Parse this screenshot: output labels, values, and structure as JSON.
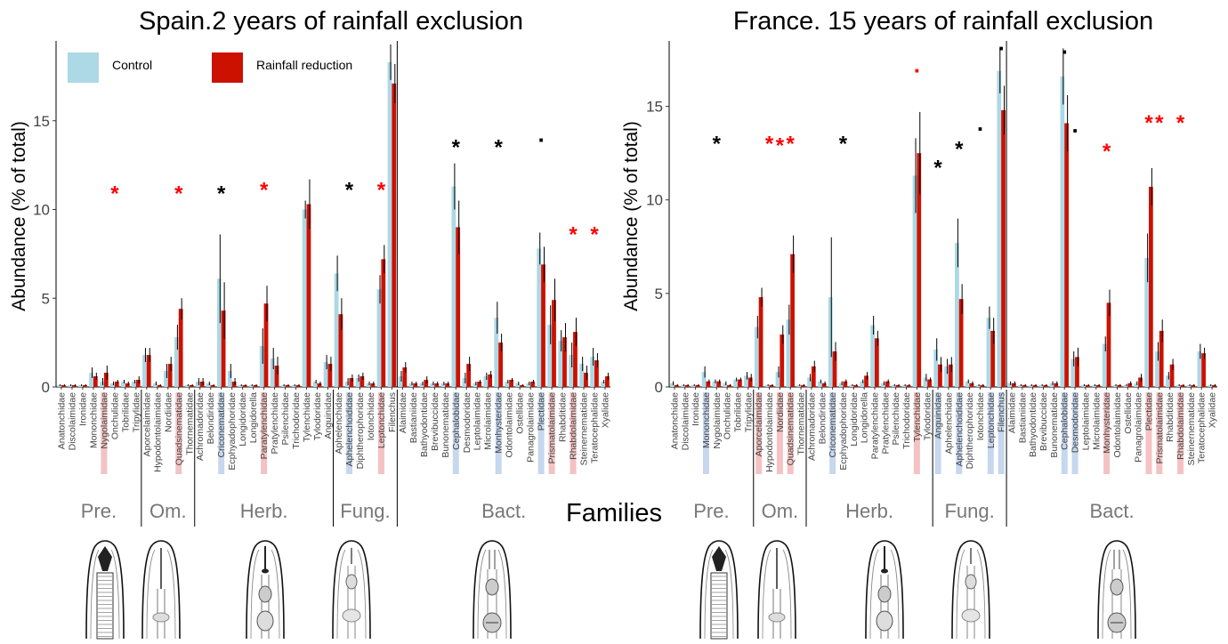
{
  "xlabel": "Families",
  "colors": {
    "control": "#add8e6",
    "reduction": "#cc1100",
    "sig_black": "#000000",
    "sig_red": "#ff0000",
    "hl_blue": "#c6d7ee",
    "hl_red": "#f4c2c2"
  },
  "legend": [
    {
      "label": "Control",
      "color": "#add8e6"
    },
    {
      "label": "Rainfall reduction",
      "color": "#cc1100"
    }
  ],
  "icons": [
    "predator-nematode-icon",
    "omnivore-nematode-icon",
    "herbivore-nematode-icon",
    "fungivore-nematode-icon",
    "bacterivore-nematode-icon"
  ],
  "chart_data": [
    {
      "type": "bar",
      "title": "Spain.2 years of rainfall exclusion",
      "ylabel": "Abundance (% of total)",
      "ylim": [
        0,
        19.5
      ],
      "yticks": [
        0,
        5,
        10,
        15
      ],
      "grid": false,
      "legend_position": "top-left",
      "groups": [
        {
          "label": "Pre.",
          "start": 0,
          "end": 7
        },
        {
          "label": "Om.",
          "start": 8,
          "end": 12
        },
        {
          "label": "Herb.",
          "start": 13,
          "end": 25
        },
        {
          "label": "Fung.",
          "start": 26,
          "end": 31
        },
        {
          "label": "Bact.",
          "start": 32,
          "end": 51
        }
      ],
      "categories": [
        "Anatonchidae",
        "Discolaimidae",
        "Ironidae",
        "Mononchidae",
        "Nygolaimidae",
        "Onchulidae",
        "Tobrilidae",
        "Tripylidae",
        "Aporcelaimidae",
        "Hypodontolaimidae",
        "Nordiidae",
        "Quadsinematidae",
        "Thornematidae",
        "Achromadoridae",
        "Belondiridae",
        "Criconematidae",
        "Ecphyadophoridae",
        "Longidoridae",
        "Longidorella",
        "Paratylenchidae",
        "Pratylenchidae",
        "Psilenchidae",
        "Trichodoridae",
        "Tylenchidae",
        "Tylodoridae",
        "Anguinidae",
        "Aphelenchidae",
        "Aphelenchoididae",
        "Diphtherophoridae",
        "Iotonchidae",
        "Leptonchidae",
        "Filenchus",
        "Alaimidae",
        "Bastianiidae",
        "Bathyodontidae",
        "Brevibuccidae",
        "Bunonematidae",
        "Cephalobidae",
        "Desmodoridae",
        "Leptolaimidae",
        "Microlaimidae",
        "Monhysteridae",
        "Odontolaimidae",
        "Ostellidae",
        "Panagrolaimidae",
        "Plectidae",
        "Prismatolaimidae",
        "Rhabditidae",
        "Rhabdolaimidae",
        "Steinernematidae",
        "Teratocephalidae",
        "Xyalidae"
      ],
      "series": [
        {
          "name": "Control",
          "values": [
            0.1,
            0.1,
            0.1,
            0.8,
            0.3,
            0.2,
            0.3,
            0.3,
            1.8,
            0.2,
            0.9,
            2.8,
            0.1,
            0.3,
            0.2,
            6.1,
            0.9,
            0.1,
            0.1,
            2.3,
            1.6,
            0.1,
            0.1,
            10.0,
            0.3,
            1.4,
            6.4,
            0.3,
            0.5,
            0.2,
            5.5,
            18.3,
            0.6,
            0.2,
            0.2,
            0.2,
            0.2,
            11.3,
            0.5,
            0.2,
            0.6,
            3.9,
            0.3,
            0.2,
            0.2,
            7.8,
            3.5,
            2.6,
            1.8,
            1.3,
            1.7,
            0.3
          ]
        },
        {
          "name": "Rainfall reduction",
          "values": [
            0.1,
            0.1,
            0.1,
            0.6,
            0.8,
            0.3,
            0.2,
            0.4,
            1.8,
            0.1,
            1.3,
            4.4,
            0.1,
            0.3,
            0.1,
            4.3,
            0.3,
            0.1,
            0.1,
            4.7,
            1.2,
            0.1,
            0.1,
            10.3,
            0.2,
            1.3,
            4.1,
            0.5,
            0.6,
            0.2,
            7.2,
            17.1,
            1.1,
            0.2,
            0.4,
            0.2,
            0.2,
            9.0,
            1.3,
            0.3,
            0.7,
            2.5,
            0.4,
            0.1,
            0.3,
            6.9,
            4.9,
            2.8,
            3.1,
            0.8,
            1.5,
            0.6
          ]
        }
      ],
      "error": [
        [
          0.05,
          0.05,
          0.05,
          0.3,
          0.2,
          0.1,
          0.1,
          0.1,
          0.4,
          0.1,
          0.4,
          0.7,
          0.05,
          0.2,
          0.1,
          2.5,
          0.4,
          0.05,
          0.05,
          1.0,
          0.6,
          0.05,
          0.05,
          0.5,
          0.1,
          0.4,
          1.0,
          0.2,
          0.2,
          0.1,
          0.8,
          1.0,
          0.3,
          0.1,
          0.1,
          0.1,
          0.1,
          1.3,
          0.3,
          0.1,
          0.2,
          0.9,
          0.1,
          0.1,
          0.1,
          0.9,
          1.1,
          0.6,
          0.7,
          0.4,
          0.5,
          0.1
        ],
        [
          0.05,
          0.05,
          0.05,
          0.2,
          0.4,
          0.1,
          0.1,
          0.2,
          0.4,
          0.05,
          0.4,
          0.6,
          0.05,
          0.2,
          0.05,
          1.6,
          0.2,
          0.05,
          0.05,
          1.0,
          0.5,
          0.05,
          0.05,
          1.4,
          0.1,
          0.4,
          0.9,
          0.2,
          0.2,
          0.1,
          0.8,
          1.1,
          0.3,
          0.1,
          0.2,
          0.1,
          0.1,
          1.5,
          0.4,
          0.1,
          0.2,
          0.5,
          0.1,
          0.05,
          0.1,
          1.0,
          1.2,
          0.8,
          0.8,
          0.4,
          0.4,
          0.2
        ]
      ],
      "highlight": [
        {
          "index": 4,
          "color": "red"
        },
        {
          "index": 11,
          "color": "red"
        },
        {
          "index": 15,
          "color": "blue"
        },
        {
          "index": 19,
          "color": "red"
        },
        {
          "index": 27,
          "color": "blue"
        },
        {
          "index": 30,
          "color": "red"
        },
        {
          "index": 37,
          "color": "blue"
        },
        {
          "index": 41,
          "color": "blue"
        },
        {
          "index": 45,
          "color": "blue"
        },
        {
          "index": 46,
          "color": "red"
        },
        {
          "index": 48,
          "color": "red"
        }
      ],
      "annotations": [
        {
          "index": 5,
          "y": 11.2,
          "text": "*",
          "color": "red"
        },
        {
          "index": 11,
          "y": 11.2,
          "text": "*",
          "color": "red"
        },
        {
          "index": 15,
          "y": 11.2,
          "text": "*",
          "color": "black"
        },
        {
          "index": 19,
          "y": 11.4,
          "text": "*",
          "color": "red"
        },
        {
          "index": 27,
          "y": 11.4,
          "text": "*",
          "color": "black"
        },
        {
          "index": 30,
          "y": 11.4,
          "text": "*",
          "color": "red"
        },
        {
          "index": 37,
          "y": 13.8,
          "text": "*",
          "color": "black"
        },
        {
          "index": 41,
          "y": 13.8,
          "text": "*",
          "color": "black"
        },
        {
          "index": 45,
          "y": 13.8,
          "text": ".",
          "color": "black"
        },
        {
          "index": 48,
          "y": 8.9,
          "text": "*",
          "color": "red"
        },
        {
          "index": 50,
          "y": 8.9,
          "text": "*",
          "color": "red"
        }
      ]
    },
    {
      "type": "bar",
      "title": "France. 15 years of rainfall exclusion",
      "ylabel": "Abundance (% of total)",
      "ylim": [
        0,
        18.5
      ],
      "yticks": [
        0,
        5,
        10,
        15
      ],
      "grid": false,
      "groups": [
        {
          "label": "Pre.",
          "start": 0,
          "end": 7
        },
        {
          "label": "Om.",
          "start": 8,
          "end": 12
        },
        {
          "label": "Herb.",
          "start": 13,
          "end": 24
        },
        {
          "label": "Fung.",
          "start": 25,
          "end": 31
        },
        {
          "label": "Bact.",
          "start": 32,
          "end": 51
        }
      ],
      "categories": [
        "Anatonchidae",
        "Discolaimidae",
        "Ironidae",
        "Mononchidae",
        "Nygolaimidae",
        "Onchulidae",
        "Tobrilidae",
        "Tripylidae",
        "Aporcelaimidae",
        "Hypodontolaimidae",
        "Nordiidae",
        "Quadsinematidae",
        "Thornematidae",
        "Achromadoridae",
        "Belondiridae",
        "Criconematidae",
        "Ecphyadophoridae",
        "Longidoridae",
        "Longidorella",
        "Paratylenchidae",
        "Pratylenchidae",
        "Psilenchidae",
        "Trichodoridae",
        "Tylenchidae",
        "Tylodoridae",
        "Anguinidae",
        "Aphelenchidae",
        "Aphelenchoididae",
        "Diphtherophoridae",
        "Iotonchidae",
        "Leptonchidae",
        "Filenchus",
        "Alaimidae",
        "Bastianiidae",
        "Bathyodontidae",
        "Brevibuccidae",
        "Bunonematidae",
        "Cephalobidae",
        "Desmodoridae",
        "Leptolaimidae",
        "Microlaimidae",
        "Monhysteridae",
        "Odontolaimidae",
        "Ostellidae",
        "Panagrolaimidae",
        "Plectidae",
        "Prismatolaimidae",
        "Rhabditidae",
        "Rhabdolaimidae",
        "Steinernematidae",
        "Teratocephalidae",
        "Xyalidae"
      ],
      "series": [
        {
          "name": "Control",
          "values": [
            0.2,
            0.1,
            0.1,
            0.8,
            0.3,
            0.2,
            0.4,
            0.6,
            3.2,
            0.1,
            0.8,
            3.6,
            0.1,
            0.5,
            0.3,
            4.8,
            0.2,
            0.1,
            0.3,
            3.3,
            0.2,
            0.1,
            0.1,
            11.3,
            0.5,
            2.0,
            1.1,
            7.7,
            0.3,
            0.1,
            3.7,
            16.9,
            0.2,
            0.1,
            0.1,
            0.1,
            0.2,
            16.6,
            1.5,
            0.1,
            0.1,
            2.3,
            0.1,
            0.1,
            0.2,
            6.9,
            1.9,
            0.6,
            0.1,
            0.1,
            1.9,
            0.1
          ]
        },
        {
          "name": "Rainfall reduction",
          "values": [
            0.1,
            0.1,
            0.1,
            0.3,
            0.3,
            0.1,
            0.4,
            0.5,
            4.8,
            0.1,
            2.8,
            7.1,
            0.1,
            1.1,
            0.2,
            1.9,
            0.3,
            0.1,
            0.6,
            2.6,
            0.3,
            0.1,
            0.1,
            12.5,
            0.4,
            1.2,
            1.2,
            4.7,
            0.2,
            0.1,
            3.0,
            14.8,
            0.2,
            0.1,
            0.1,
            0.1,
            0.2,
            14.1,
            1.6,
            0.1,
            0.1,
            4.5,
            0.1,
            0.2,
            0.5,
            10.7,
            3.0,
            1.2,
            0.1,
            0.1,
            1.8,
            0.1
          ]
        }
      ],
      "error": [
        [
          0.1,
          0.05,
          0.05,
          0.3,
          0.1,
          0.1,
          0.1,
          0.2,
          0.6,
          0.05,
          0.3,
          0.8,
          0.05,
          0.2,
          0.1,
          3.2,
          0.1,
          0.05,
          0.1,
          0.5,
          0.1,
          0.05,
          0.05,
          2.0,
          0.2,
          0.6,
          0.4,
          1.3,
          0.1,
          0.05,
          0.6,
          1.2,
          0.1,
          0.05,
          0.05,
          0.05,
          0.1,
          1.5,
          0.4,
          0.05,
          0.05,
          0.4,
          0.05,
          0.05,
          0.1,
          1.3,
          0.5,
          0.2,
          0.05,
          0.05,
          0.4,
          0.05
        ],
        [
          0.05,
          0.05,
          0.05,
          0.1,
          0.1,
          0.05,
          0.1,
          0.2,
          0.5,
          0.05,
          0.5,
          1.0,
          0.05,
          0.3,
          0.1,
          0.5,
          0.1,
          0.05,
          0.2,
          0.4,
          0.1,
          0.05,
          0.05,
          2.2,
          0.1,
          0.4,
          0.4,
          0.8,
          0.1,
          0.05,
          0.7,
          1.3,
          0.1,
          0.05,
          0.05,
          0.05,
          0.1,
          1.5,
          0.5,
          0.05,
          0.05,
          0.7,
          0.05,
          0.1,
          0.2,
          1.0,
          0.6,
          0.3,
          0.05,
          0.05,
          0.3,
          0.05
        ]
      ],
      "highlight": [
        {
          "index": 3,
          "color": "blue"
        },
        {
          "index": 8,
          "color": "red"
        },
        {
          "index": 10,
          "color": "red"
        },
        {
          "index": 11,
          "color": "red"
        },
        {
          "index": 15,
          "color": "blue"
        },
        {
          "index": 23,
          "color": "red"
        },
        {
          "index": 25,
          "color": "blue"
        },
        {
          "index": 27,
          "color": "blue"
        },
        {
          "index": 30,
          "color": "blue"
        },
        {
          "index": 31,
          "color": "blue"
        },
        {
          "index": 37,
          "color": "blue"
        },
        {
          "index": 38,
          "color": "blue"
        },
        {
          "index": 41,
          "color": "red"
        },
        {
          "index": 45,
          "color": "red"
        },
        {
          "index": 46,
          "color": "red"
        },
        {
          "index": 48,
          "color": "red"
        }
      ],
      "annotations": [
        {
          "index": 4,
          "y": 13.3,
          "text": "*",
          "color": "black"
        },
        {
          "index": 9,
          "y": 13.3,
          "text": "*",
          "color": "red"
        },
        {
          "index": 10,
          "y": 13.2,
          "text": "*",
          "color": "red"
        },
        {
          "index": 11,
          "y": 13.3,
          "text": "*",
          "color": "red"
        },
        {
          "index": 16,
          "y": 13.3,
          "text": "*",
          "color": "black"
        },
        {
          "index": 23,
          "y": 16.8,
          "text": ".",
          "color": "red"
        },
        {
          "index": 25,
          "y": 12.0,
          "text": "*",
          "color": "black"
        },
        {
          "index": 27,
          "y": 13.0,
          "text": "*",
          "color": "black"
        },
        {
          "index": 29,
          "y": 13.7,
          "text": ".",
          "color": "black"
        },
        {
          "index": 31,
          "y": 18.0,
          "text": ".",
          "color": "black"
        },
        {
          "index": 37,
          "y": 17.8,
          "text": ".",
          "color": "black"
        },
        {
          "index": 38,
          "y": 13.6,
          "text": ".",
          "color": "black"
        },
        {
          "index": 41,
          "y": 12.9,
          "text": "*",
          "color": "red"
        },
        {
          "index": 45,
          "y": 14.4,
          "text": "*",
          "color": "red"
        },
        {
          "index": 46,
          "y": 14.4,
          "text": "*",
          "color": "red"
        },
        {
          "index": 48,
          "y": 14.4,
          "text": "*",
          "color": "red"
        }
      ]
    }
  ]
}
